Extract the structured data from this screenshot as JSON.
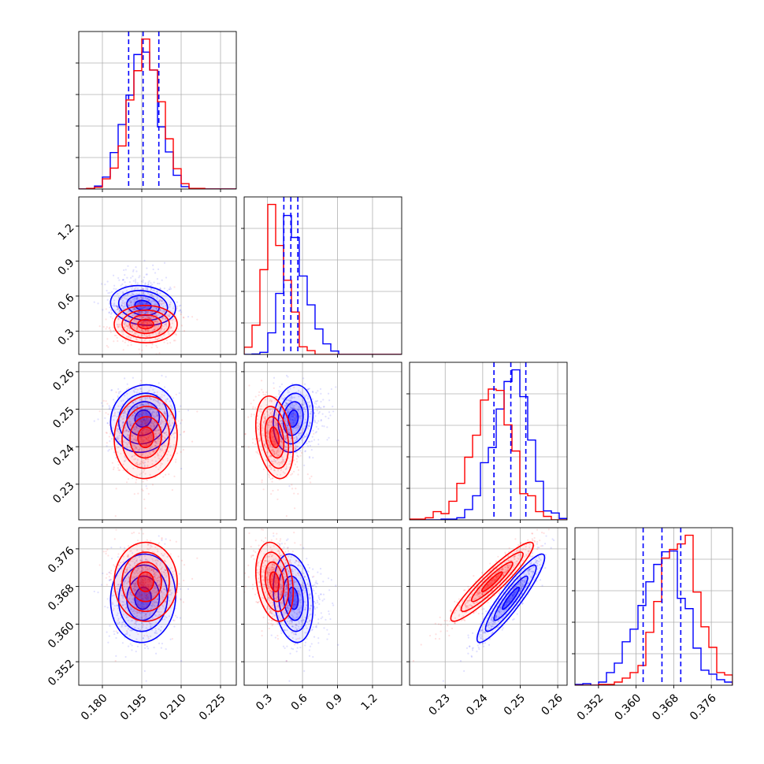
{
  "chart_data": {
    "type": "corner",
    "title": "",
    "parameters": [
      {
        "range": [
          0.171,
          0.231
        ],
        "ticks": [
          "0.180",
          "0.195",
          "0.210",
          "0.225"
        ],
        "tick_values": [
          0.18,
          0.195,
          0.21,
          0.225
        ]
      },
      {
        "range": [
          0.1,
          1.45
        ],
        "ticks": [
          "0.3",
          "0.6",
          "0.9",
          "1.2"
        ],
        "tick_values": [
          0.3,
          0.6,
          0.9,
          1.2
        ]
      },
      {
        "range": [
          0.2205,
          0.2625
        ],
        "ticks": [
          "0.23",
          "0.24",
          "0.25",
          "0.26"
        ],
        "tick_values": [
          0.23,
          0.24,
          0.25,
          0.26
        ]
      },
      {
        "range": [
          0.347,
          0.3805
        ],
        "ticks": [
          "0.352",
          "0.360",
          "0.368",
          "0.376"
        ],
        "tick_values": [
          0.352,
          0.36,
          0.368,
          0.376
        ]
      }
    ],
    "series": [
      {
        "color": "#0000ff",
        "means": [
          0.1955,
          0.52,
          0.2475,
          0.3655
        ],
        "sds": [
          0.0062,
          0.085,
          0.0045,
          0.0047
        ],
        "correlations": {
          "1-0": -0.15,
          "2-0": 0.1,
          "2-1": 0.15,
          "3-0": 0.05,
          "3-1": -0.2,
          "3-2": 0.92
        },
        "quantiles": [
          [
            0.19,
            0.1955,
            0.2015
          ],
          [
            0.44,
            0.5,
            0.56
          ],
          [
            0.243,
            0.2475,
            0.2515
          ],
          [
            0.3615,
            0.3655,
            0.3695
          ]
        ]
      },
      {
        "color": "#ff0000",
        "means": [
          0.1965,
          0.36,
          0.2425,
          0.369
        ],
        "sds": [
          0.006,
          0.08,
          0.0055,
          0.0042
        ],
        "correlations": {
          "1-0": 0.0,
          "2-0": 0.05,
          "2-1": -0.3,
          "3-0": 0.0,
          "3-1": -0.25,
          "3-2": 0.93
        }
      }
    ],
    "dashed_lines_color": "#0000ff",
    "grid": true
  }
}
